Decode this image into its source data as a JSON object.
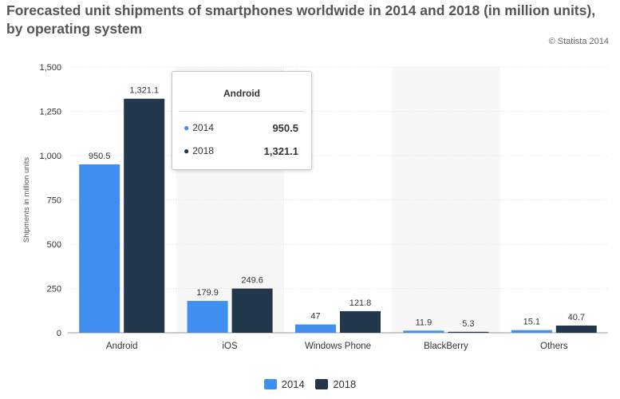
{
  "title": "Forecasted unit shipments of smartphones worldwide in 2014 and 2018 (in million units), by operating system",
  "source": "© Statista 2014",
  "colors": {
    "s2014": "#3f8ef0",
    "s2018": "#23374c",
    "highlight_band": "#f7f7f7",
    "grid": "#e3e3e3"
  },
  "tooltip": {
    "title": "Android",
    "rows": [
      {
        "label": "2014",
        "value": "950.5",
        "color": "#3f8ef0"
      },
      {
        "label": "2018",
        "value": "1,321.1",
        "color": "#23374c"
      }
    ]
  },
  "chart_data": {
    "type": "bar",
    "categories": [
      "Android",
      "iOS",
      "Windows Phone",
      "BlackBerry",
      "Others"
    ],
    "series": [
      {
        "name": "2014",
        "values": [
          950.5,
          179.9,
          47,
          11.9,
          15.1
        ],
        "labels": [
          "950.5",
          "179.9",
          "47",
          "11.9",
          "15.1"
        ],
        "color": "#3f8ef0"
      },
      {
        "name": "2018",
        "values": [
          1321.1,
          249.6,
          121.8,
          5.3,
          40.7
        ],
        "labels": [
          "1,321.1",
          "249.6",
          "121.8",
          "5.3",
          "40.7"
        ],
        "color": "#23374c"
      }
    ],
    "ylabel": "Shipments in million units",
    "ylim": [
      0,
      1500
    ],
    "yticks": [
      0,
      250,
      500,
      750,
      1000,
      1250,
      1500
    ],
    "ytick_labels": [
      "0",
      "250",
      "500",
      "750",
      "1,000",
      "1,250",
      "1,500"
    ],
    "grid": true,
    "legend": "bottom-center"
  }
}
